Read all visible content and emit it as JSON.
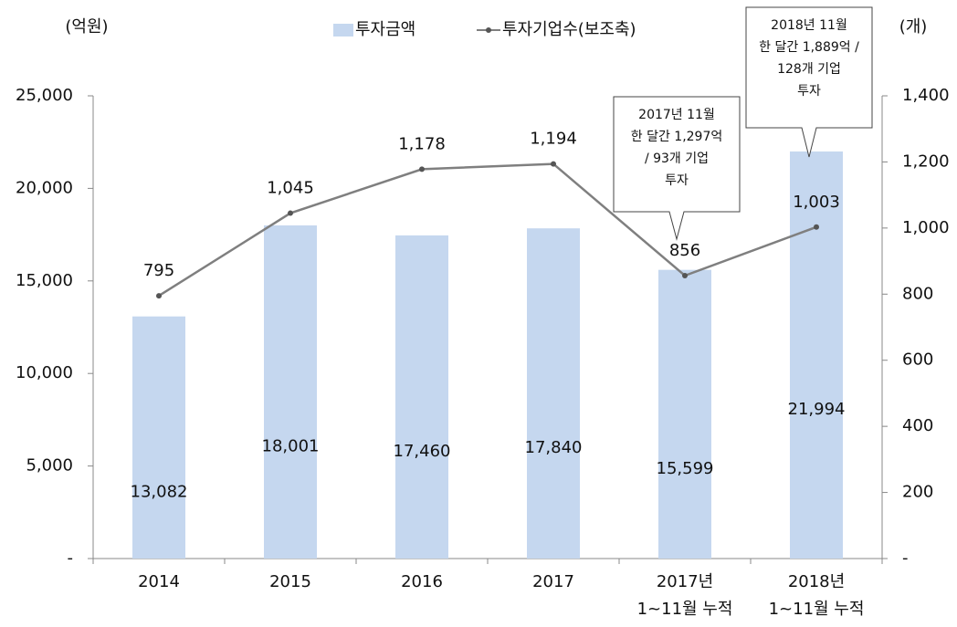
{
  "chart_data": {
    "type": "bar_line",
    "y_label": "(억원)",
    "y2_label": "(개)",
    "categories": [
      "2014",
      "2015",
      "2016",
      "2017",
      "2017년\n1~11월 누적",
      "2018년\n1~11월 누적"
    ],
    "series": [
      {
        "name": "투자금액",
        "type": "bar",
        "color": "#c5d7ef",
        "values": [
          13082,
          18001,
          17460,
          17840,
          15599,
          21994
        ],
        "value_labels": [
          "13,082",
          "18,001",
          "17,460",
          "17,840",
          "15,599",
          "21,994"
        ]
      },
      {
        "name": "투자기업수(보조축)",
        "type": "line",
        "color": "#7f7f7f",
        "axis": "y2",
        "values": [
          795,
          1045,
          1178,
          1194,
          856,
          1003
        ],
        "value_labels": [
          "795",
          "1,045",
          "1,178",
          "1,194",
          "856",
          "1,003"
        ]
      }
    ],
    "ylim": [
      0,
      25000
    ],
    "yticks": [
      {
        "value": 0,
        "label": "-"
      },
      {
        "value": 5000,
        "label": "5,000"
      },
      {
        "value": 10000,
        "label": "10,000"
      },
      {
        "value": 15000,
        "label": "15,000"
      },
      {
        "value": 20000,
        "label": "20,000"
      },
      {
        "value": 25000,
        "label": "25,000"
      }
    ],
    "y2lim": [
      0,
      1400
    ],
    "y2ticks": [
      {
        "value": 0,
        "label": "-"
      },
      200,
      400,
      600,
      800,
      {
        "value": 1000,
        "label": "1,000"
      },
      {
        "value": 1200,
        "label": "1,200"
      },
      {
        "value": 1400,
        "label": "1,400"
      }
    ],
    "annotations": [
      "2017년 11월\n한 달간 1,297억\n/ 93개 기업\n투자",
      "2018년 11월\n한 달간 1,889억 /\n128개 기업\n투자"
    ]
  }
}
